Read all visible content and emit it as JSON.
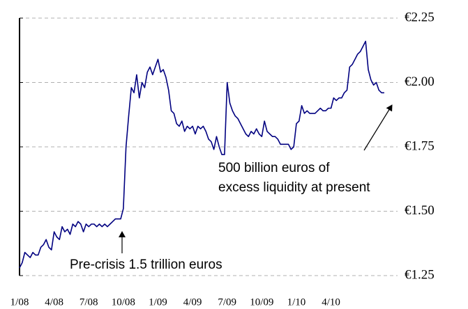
{
  "chart_data": {
    "type": "line",
    "annotations": [
      "Pre-crisis 1.5 trillion euros",
      "500 billion euros of",
      "excess liquidity at present"
    ],
    "x": [
      0,
      1,
      2,
      3,
      4,
      5,
      6,
      7,
      8,
      9,
      10,
      11,
      12,
      13,
      14,
      15,
      16,
      17,
      18,
      19,
      20,
      21,
      22,
      23,
      24,
      25,
      26,
      27,
      28,
      29,
      30,
      31,
      32,
      33,
      34,
      35,
      36,
      37,
      38,
      39,
      40,
      41,
      42,
      43,
      44,
      45,
      46,
      47,
      48,
      49,
      50,
      51,
      52,
      53,
      54,
      55,
      56,
      57,
      58,
      59,
      60,
      61,
      62,
      63,
      64,
      65,
      66,
      67,
      68,
      69,
      70,
      71,
      72,
      73,
      74,
      75,
      76,
      77,
      78,
      79,
      80,
      81,
      82,
      83,
      84,
      85,
      86,
      87,
      88,
      89,
      90,
      91,
      92,
      93,
      94,
      95,
      96,
      97,
      98,
      99,
      100,
      101,
      102,
      103,
      104,
      105,
      106,
      107,
      108,
      109,
      110,
      111,
      112,
      113,
      114,
      115,
      116,
      117,
      118,
      119,
      120,
      121,
      122,
      123,
      124,
      125,
      126,
      127,
      128,
      129,
      130,
      131,
      132,
      133,
      134,
      135,
      136,
      137
    ],
    "series": [
      {
        "color": "#000080",
        "values": [
          1.28,
          1.3,
          1.34,
          1.33,
          1.32,
          1.34,
          1.33,
          1.33,
          1.36,
          1.37,
          1.39,
          1.36,
          1.35,
          1.42,
          1.4,
          1.39,
          1.44,
          1.42,
          1.43,
          1.41,
          1.45,
          1.44,
          1.46,
          1.45,
          1.42,
          1.45,
          1.44,
          1.45,
          1.45,
          1.44,
          1.45,
          1.44,
          1.45,
          1.44,
          1.45,
          1.46,
          1.47,
          1.47,
          1.47,
          1.51,
          1.75,
          1.87,
          1.98,
          1.96,
          2.03,
          1.94,
          2.0,
          1.98,
          2.04,
          2.06,
          2.03,
          2.06,
          2.09,
          2.04,
          2.05,
          2.02,
          1.97,
          1.89,
          1.88,
          1.84,
          1.83,
          1.85,
          1.81,
          1.83,
          1.82,
          1.83,
          1.8,
          1.83,
          1.82,
          1.83,
          1.81,
          1.78,
          1.77,
          1.74,
          1.79,
          1.75,
          1.72,
          1.72,
          2.0,
          1.92,
          1.89,
          1.87,
          1.86,
          1.84,
          1.82,
          1.8,
          1.79,
          1.81,
          1.8,
          1.82,
          1.8,
          1.79,
          1.85,
          1.81,
          1.8,
          1.79,
          1.79,
          1.78,
          1.76,
          1.76,
          1.76,
          1.76,
          1.74,
          1.75,
          1.84,
          1.85,
          1.91,
          1.88,
          1.89,
          1.88,
          1.88,
          1.88,
          1.89,
          1.9,
          1.89,
          1.89,
          1.9,
          1.9,
          1.94,
          1.93,
          1.94,
          1.94,
          1.96,
          1.97,
          2.06,
          2.07,
          2.09,
          2.11,
          2.12,
          2.14,
          2.16,
          2.05,
          2.01,
          1.99,
          2.0,
          1.97,
          1.96,
          1.96
        ]
      }
    ],
    "xlim": [
      0,
      142
    ],
    "xticks": [
      {
        "value": 0,
        "label": "1/08"
      },
      {
        "value": 13,
        "label": "4/08"
      },
      {
        "value": 26,
        "label": "7/08"
      },
      {
        "value": 39,
        "label": "10/08"
      },
      {
        "value": 52,
        "label": "1/09"
      },
      {
        "value": 65,
        "label": "4/09"
      },
      {
        "value": 78,
        "label": "7/09"
      },
      {
        "value": 91,
        "label": "10/09"
      },
      {
        "value": 104,
        "label": "1/10"
      },
      {
        "value": 117,
        "label": "4/10"
      }
    ],
    "ylim": [
      1.25,
      2.25
    ],
    "yticks": [
      {
        "value": 1.25,
        "label": "€1.25"
      },
      {
        "value": 1.5,
        "label": "€1.50"
      },
      {
        "value": 1.75,
        "label": "€1.75"
      },
      {
        "value": 2.0,
        "label": "€2.00"
      },
      {
        "value": 2.25,
        "label": "€2.25"
      }
    ],
    "grid": true
  }
}
